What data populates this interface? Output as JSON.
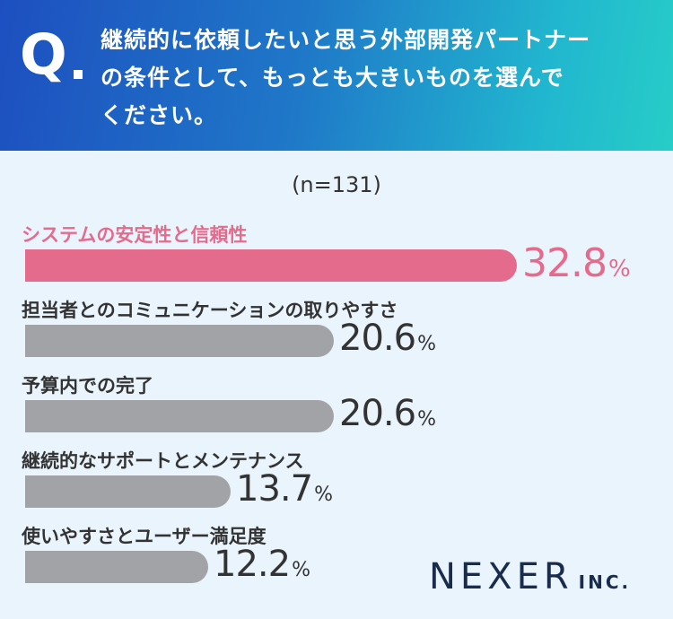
{
  "header": {
    "q_mark": "Q",
    "question_lines": [
      "継続的に依頼したいと思う外部開発パートナー",
      "の条件として、もっとも大きいものを選んで",
      "ください。"
    ]
  },
  "chart_data": {
    "type": "bar",
    "orientation": "horizontal",
    "sample_label": "(n=131)",
    "unit": "%",
    "categories": [
      "システムの安定性と信頼性",
      "担当者とのコミュニケーションの取りやすさ",
      "予算内での完了",
      "継続的なサポートとメンテナンス",
      "使いやすさとユーザー満足度"
    ],
    "values": [
      32.8,
      20.6,
      20.6,
      13.7,
      12.2
    ],
    "value_labels": [
      "32.8",
      "20.6",
      "20.6",
      "13.7",
      "12.2"
    ],
    "highlight_index": 0,
    "colors": {
      "highlight": "#e56b8c",
      "default": "#a2a3a7"
    },
    "xlim": [
      0,
      32.8
    ]
  },
  "logo": {
    "main": "NEXER",
    "suffix": "INC."
  }
}
